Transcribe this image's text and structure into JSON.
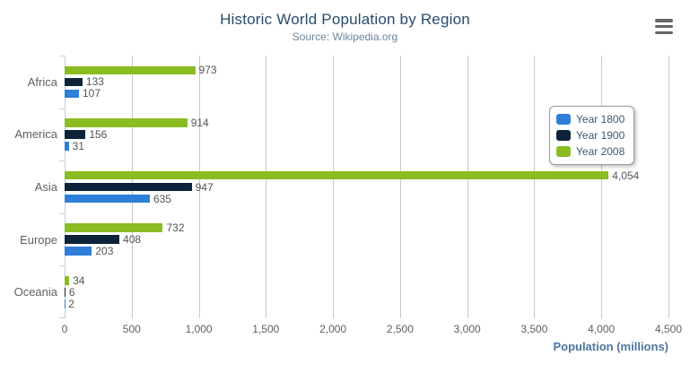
{
  "title": "Historic World Population by Region",
  "subtitle": "Source: Wikipedia.org",
  "export_menu": {
    "icon": "hamburger-icon"
  },
  "chart_data": {
    "type": "bar",
    "orientation": "horizontal",
    "title": "Historic World Population by Region",
    "subtitle": "Source: Wikipedia.org",
    "categories": [
      "Africa",
      "America",
      "Asia",
      "Europe",
      "Oceania"
    ],
    "series": [
      {
        "name": "Year 1800",
        "color": "#2f7ed8",
        "values": [
          107,
          31,
          635,
          203,
          2
        ]
      },
      {
        "name": "Year 1900",
        "color": "#0d233a",
        "values": [
          133,
          156,
          947,
          408,
          6
        ]
      },
      {
        "name": "Year 2008",
        "color": "#8bbc21",
        "values": [
          973,
          914,
          4054,
          732,
          34
        ]
      }
    ],
    "bar_order_top_to_bottom": [
      "Year 2008",
      "Year 1900",
      "Year 1800"
    ],
    "xlabel": "Population (millions)",
    "ylabel": "",
    "xlim": [
      0,
      4500
    ],
    "x_ticks": [
      0,
      500,
      1000,
      1500,
      2000,
      2500,
      3000,
      3500,
      4000,
      4500
    ],
    "x_tick_labels": [
      "0",
      "500",
      "1,000",
      "1,500",
      "2,000",
      "2,500",
      "3,000",
      "3,500",
      "4,000",
      "4,500"
    ],
    "data_labels": true,
    "grid": true,
    "legend_position": "inside-right",
    "colors": {
      "title": "#274b6d",
      "subtitle": "#6d869f",
      "axis_line": "#c0d0e0",
      "gridline": "#c8c8c8",
      "labels": "#606060",
      "data_labels": "#555555",
      "axis_title": "#4d759e",
      "legend_text": "#3e576f"
    }
  }
}
